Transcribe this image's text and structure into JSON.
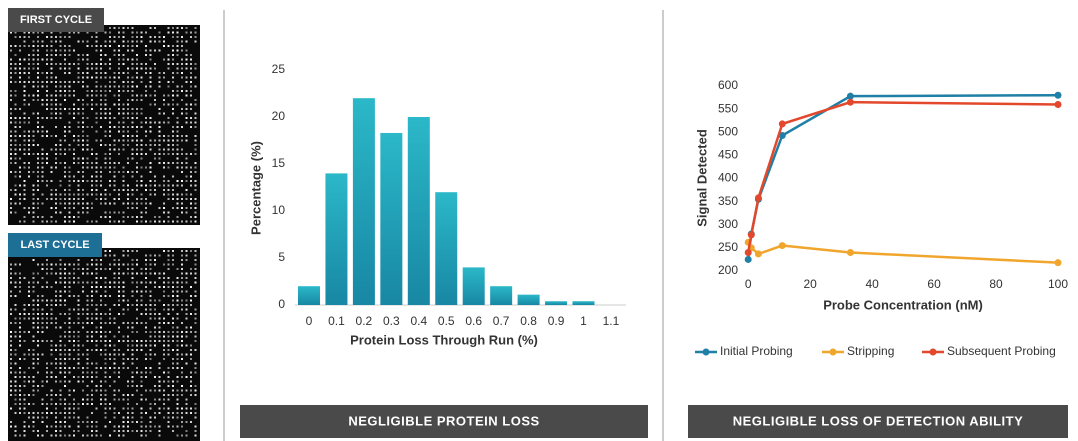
{
  "images": [
    {
      "label": "FIRST CYCLE"
    },
    {
      "label": "LAST CYCLE"
    }
  ],
  "chart_data": [
    {
      "type": "bar",
      "caption": "NEGLIGIBLE PROTEIN LOSS",
      "x_label": "Protein Loss Through Run (%)",
      "y_label": "Percentage (%)",
      "categories": [
        "0",
        "0.1",
        "0.2",
        "0.3",
        "0.4",
        "0.5",
        "0.6",
        "0.7",
        "0.8",
        "0.9",
        "1",
        "1.1"
      ],
      "values": [
        2,
        14,
        22,
        18.3,
        20,
        12,
        4,
        2,
        1.1,
        0.4,
        0.4,
        0
      ],
      "color": "#1e9db5",
      "ylim": [
        0,
        25
      ],
      "yticks": [
        0,
        5,
        10,
        15,
        20,
        25
      ]
    },
    {
      "type": "line",
      "caption": "NEGLIGIBLE LOSS OF DETECTION ABILITY",
      "x_label": "Probe Concentration (nM)",
      "y_label": "Signal Detected",
      "x": [
        0,
        1,
        3.3,
        11,
        33,
        100
      ],
      "series": [
        {
          "name": "Initial Probing",
          "color": "#1f7fa6",
          "values": [
            225,
            280,
            355,
            493,
            578,
            580
          ]
        },
        {
          "name": "Stripping",
          "color": "#f0a52c",
          "values": [
            262,
            250,
            237,
            255,
            240,
            218
          ]
        },
        {
          "name": "Subsequent Probing",
          "color": "#e3482c",
          "values": [
            240,
            278,
            358,
            518,
            565,
            560
          ]
        }
      ],
      "xlim": [
        -2,
        100
      ],
      "xticks": [
        0,
        20,
        40,
        60,
        80,
        100
      ],
      "ylim": [
        200,
        600
      ],
      "yticks": [
        200,
        250,
        300,
        350,
        400,
        450,
        500,
        550,
        600
      ],
      "legend": "bottom"
    }
  ]
}
